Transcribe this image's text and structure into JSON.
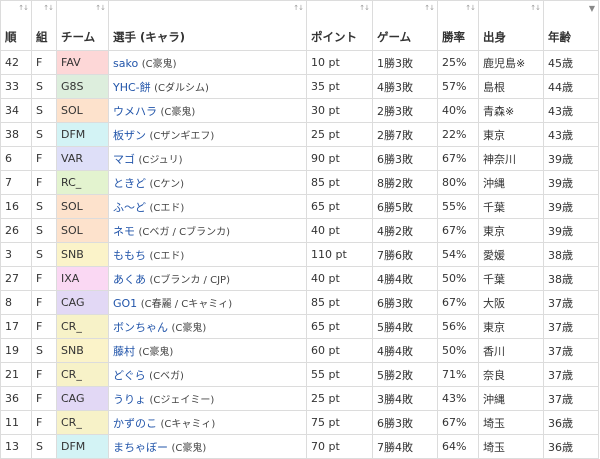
{
  "columns": [
    {
      "key": "rank",
      "label": "順",
      "sort": "both"
    },
    {
      "key": "group",
      "label": "組",
      "sort": "both"
    },
    {
      "key": "team",
      "label": "チーム",
      "sort": "both"
    },
    {
      "key": "player",
      "label": "選手 (キャラ)",
      "sort": "both"
    },
    {
      "key": "points",
      "label": "ポイント",
      "sort": "both"
    },
    {
      "key": "games",
      "label": "ゲーム",
      "sort": "both"
    },
    {
      "key": "winrate",
      "label": "勝率",
      "sort": "both"
    },
    {
      "key": "origin",
      "label": "出身",
      "sort": "both"
    },
    {
      "key": "age",
      "label": "年齢",
      "sort": "desc"
    }
  ],
  "team_colors": {
    "FAV": "#fdd7d7",
    "G8S": "#ddeedd",
    "SOL": "#fde2cc",
    "DFM": "#d3f3f5",
    "VAR": "#dedff8",
    "RC_": "#e3f3cf",
    "SNB": "#fbf3c9",
    "IXA": "#fad8f3",
    "CAG": "#e2d8f5",
    "CR_": "#f7f2c8"
  },
  "rows": [
    {
      "rank": "42",
      "group": "F",
      "team": "FAV",
      "name": "sako",
      "chara": "(C豪鬼)",
      "points": "10 pt",
      "games": "1勝3敗",
      "winrate": "25%",
      "origin": "鹿児島※",
      "age": "45歳"
    },
    {
      "rank": "33",
      "group": "S",
      "team": "G8S",
      "name": "YHC-餅",
      "chara": "(Cダルシム)",
      "points": "35 pt",
      "games": "4勝3敗",
      "winrate": "57%",
      "origin": "島根",
      "age": "44歳"
    },
    {
      "rank": "34",
      "group": "S",
      "team": "SOL",
      "name": "ウメハラ",
      "chara": "(C豪鬼)",
      "points": "30 pt",
      "games": "2勝3敗",
      "winrate": "40%",
      "origin": "青森※",
      "age": "43歳"
    },
    {
      "rank": "38",
      "group": "S",
      "team": "DFM",
      "name": "板ザン",
      "chara": "(Cザンギエフ)",
      "points": "25 pt",
      "games": "2勝7敗",
      "winrate": "22%",
      "origin": "東京",
      "age": "43歳"
    },
    {
      "rank": "6",
      "group": "F",
      "team": "VAR",
      "name": "マゴ",
      "chara": "(Cジュリ)",
      "points": "90 pt",
      "games": "6勝3敗",
      "winrate": "67%",
      "origin": "神奈川",
      "age": "39歳"
    },
    {
      "rank": "7",
      "group": "F",
      "team": "RC_",
      "name": "ときど",
      "chara": "(Cケン)",
      "points": "85 pt",
      "games": "8勝2敗",
      "winrate": "80%",
      "origin": "沖縄",
      "age": "39歳"
    },
    {
      "rank": "16",
      "group": "S",
      "team": "SOL",
      "name": "ふ～ど",
      "chara": "(Cエド)",
      "points": "65 pt",
      "games": "6勝5敗",
      "winrate": "55%",
      "origin": "千葉",
      "age": "39歳"
    },
    {
      "rank": "26",
      "group": "S",
      "team": "SOL",
      "name": "ネモ",
      "chara": "(Cベガ / Cブランカ)",
      "points": "40 pt",
      "games": "4勝2敗",
      "winrate": "67%",
      "origin": "東京",
      "age": "39歳"
    },
    {
      "rank": "3",
      "group": "S",
      "team": "SNB",
      "name": "ももち",
      "chara": "(Cエド)",
      "points": "110 pt",
      "games": "7勝6敗",
      "winrate": "54%",
      "origin": "愛媛",
      "age": "38歳"
    },
    {
      "rank": "27",
      "group": "F",
      "team": "IXA",
      "name": "あくあ",
      "chara": "(Cブランカ / CJP)",
      "points": "40 pt",
      "games": "4勝4敗",
      "winrate": "50%",
      "origin": "千葉",
      "age": "38歳"
    },
    {
      "rank": "8",
      "group": "F",
      "team": "CAG",
      "name": "GO1",
      "chara": "(C春麗 / Cキャミィ)",
      "points": "85 pt",
      "games": "6勝3敗",
      "winrate": "67%",
      "origin": "大阪",
      "age": "37歳"
    },
    {
      "rank": "17",
      "group": "F",
      "team": "CR_",
      "name": "ボンちゃん",
      "chara": "(C豪鬼)",
      "points": "65 pt",
      "games": "5勝4敗",
      "winrate": "56%",
      "origin": "東京",
      "age": "37歳"
    },
    {
      "rank": "19",
      "group": "S",
      "team": "SNB",
      "name": "藤村",
      "chara": "(C豪鬼)",
      "points": "60 pt",
      "games": "4勝4敗",
      "winrate": "50%",
      "origin": "香川",
      "age": "37歳"
    },
    {
      "rank": "21",
      "group": "F",
      "team": "CR_",
      "name": "どぐら",
      "chara": "(Cベガ)",
      "points": "55 pt",
      "games": "5勝2敗",
      "winrate": "71%",
      "origin": "奈良",
      "age": "37歳"
    },
    {
      "rank": "36",
      "group": "F",
      "team": "CAG",
      "name": "うりょ",
      "chara": "(Cジェイミー)",
      "points": "25 pt",
      "games": "3勝4敗",
      "winrate": "43%",
      "origin": "沖縄",
      "age": "37歳"
    },
    {
      "rank": "11",
      "group": "F",
      "team": "CR_",
      "name": "かずのこ",
      "chara": "(Cキャミィ)",
      "points": "75 pt",
      "games": "6勝3敗",
      "winrate": "67%",
      "origin": "埼玉",
      "age": "36歳"
    },
    {
      "rank": "13",
      "group": "S",
      "team": "DFM",
      "name": "まちゃぼー",
      "chara": "(C豪鬼)",
      "points": "70 pt",
      "games": "7勝4敗",
      "winrate": "64%",
      "origin": "埼玉",
      "age": "36歳"
    }
  ]
}
